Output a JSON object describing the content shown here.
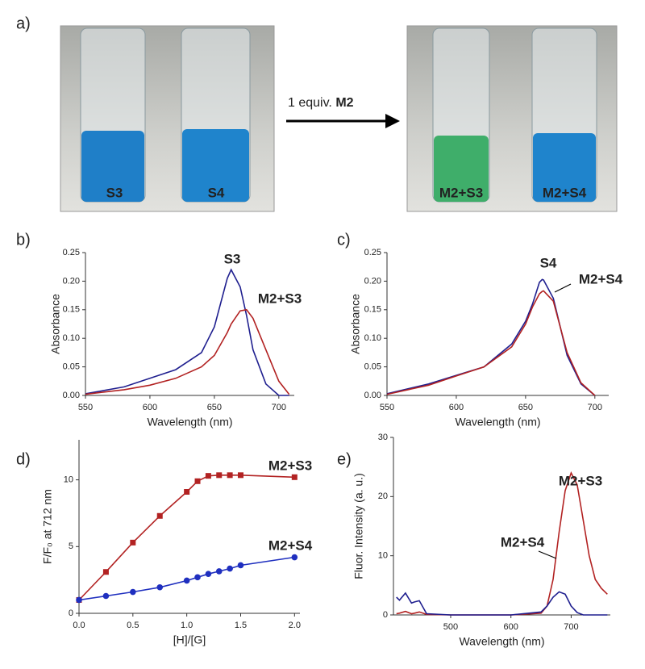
{
  "panel_a": {
    "letter": "a)",
    "left_labels": [
      "S3",
      "S4"
    ],
    "arrow_text": "1 equiv.",
    "arrow_bold": "M2",
    "right_labels": [
      "M2+S3",
      "M2+S4"
    ]
  },
  "chart_data": [
    {
      "type": "line",
      "panel": "b)",
      "xlabel": "Wavelength (nm)",
      "ylabel": "Absorbance",
      "x": [
        550,
        580,
        600,
        620,
        640,
        650,
        660,
        663,
        670,
        675,
        680,
        690,
        700,
        708
      ],
      "xlim": [
        550,
        712
      ],
      "xticks": [
        550,
        600,
        650,
        700
      ],
      "ylim": [
        0,
        0.25
      ],
      "yticks": [
        {
          "value": 0,
          "label": "0.00"
        },
        {
          "value": 0.05,
          "label": "0.05"
        },
        {
          "value": 0.1,
          "label": "0.10"
        },
        {
          "value": 0.15,
          "label": "0.15"
        },
        {
          "value": 0.2,
          "label": "0.20"
        },
        {
          "value": 0.25,
          "label": "0.25"
        }
      ],
      "series": [
        {
          "name": "S3",
          "color": "#1f1f8f",
          "values": [
            0.003,
            0.015,
            0.03,
            0.045,
            0.075,
            0.12,
            0.205,
            0.22,
            0.19,
            0.14,
            0.08,
            0.02,
            0,
            0
          ]
        },
        {
          "name": "M2+S3",
          "color": "#b22222",
          "values": [
            0.002,
            0.01,
            0.018,
            0.03,
            0.05,
            0.07,
            0.11,
            0.125,
            0.148,
            0.15,
            0.135,
            0.08,
            0.025,
            0.002
          ]
        }
      ]
    },
    {
      "type": "line",
      "panel": "c)",
      "xlabel": "Wavelength (nm)",
      "ylabel": "Absorbance",
      "x": [
        550,
        580,
        600,
        620,
        640,
        650,
        655,
        660,
        662,
        663,
        670,
        680,
        690,
        700
      ],
      "xlim": [
        550,
        710
      ],
      "xticks": [
        550,
        600,
        650,
        700
      ],
      "ylim": [
        0,
        0.25
      ],
      "yticks": [
        {
          "value": 0,
          "label": "0.00"
        },
        {
          "value": 0.05,
          "label": "0.05"
        },
        {
          "value": 0.1,
          "label": "0.10"
        },
        {
          "value": 0.15,
          "label": "0.15"
        },
        {
          "value": 0.2,
          "label": "0.20"
        },
        {
          "value": 0.25,
          "label": "0.25"
        }
      ],
      "series": [
        {
          "name": "S4",
          "color": "#1f1f8f",
          "values": [
            0.003,
            0.02,
            0.035,
            0.05,
            0.09,
            0.13,
            0.16,
            0.198,
            0.203,
            0.202,
            0.17,
            0.07,
            0.02,
            0
          ]
        },
        {
          "name": "M2+S4",
          "color": "#b22222",
          "values": [
            0.002,
            0.018,
            0.034,
            0.05,
            0.085,
            0.125,
            0.155,
            0.178,
            0.182,
            0.183,
            0.165,
            0.075,
            0.022,
            0
          ]
        }
      ]
    },
    {
      "type": "line",
      "panel": "d)",
      "xlabel": "[H]/[G]",
      "ylabel": "F/F₀ at 712 nm",
      "markers": true,
      "x": [
        0,
        0.25,
        0.5,
        0.75,
        1.0,
        1.1,
        1.2,
        1.3,
        1.4,
        1.5,
        2.0
      ],
      "xlim": [
        0,
        2.05
      ],
      "xticks": [
        {
          "value": 0,
          "label": "0.0"
        },
        {
          "value": 0.5,
          "label": "0.5"
        },
        {
          "value": 1,
          "label": "1.0"
        },
        {
          "value": 1.5,
          "label": "1.5"
        },
        {
          "value": 2,
          "label": "2.0"
        }
      ],
      "ylim": [
        0,
        13
      ],
      "yticks": [
        0,
        5,
        10
      ],
      "series": [
        {
          "name": "M2+S3",
          "color": "#b22222",
          "marker": "square",
          "values": [
            1,
            3.1,
            5.3,
            7.3,
            9.1,
            9.9,
            10.3,
            10.35,
            10.35,
            10.35,
            10.2
          ]
        },
        {
          "name": "M2+S4",
          "color": "#1f2fbf",
          "marker": "circle",
          "values": [
            1,
            1.3,
            1.6,
            1.95,
            2.45,
            2.7,
            2.95,
            3.15,
            3.35,
            3.6,
            4.2
          ]
        }
      ]
    },
    {
      "type": "line",
      "panel": "e)",
      "xlabel": "Wavelength (nm)",
      "ylabel": "Fluor. Intensity (a. u.)",
      "x": [
        410,
        415,
        425,
        435,
        440,
        448,
        460,
        500,
        600,
        650,
        660,
        670,
        680,
        690,
        700,
        710,
        720,
        730,
        740,
        750,
        760
      ],
      "xlim": [
        405,
        765
      ],
      "xticks": [
        500,
        600,
        700
      ],
      "ylim": [
        0,
        30
      ],
      "yticks": [
        0,
        10,
        20,
        30
      ],
      "series": [
        {
          "name": "M2+S3",
          "color": "#b22222",
          "values": [
            0.2,
            0.3,
            0.6,
            0.2,
            0.3,
            0.5,
            0.1,
            0,
            0,
            0.3,
            1.5,
            6,
            14,
            21,
            24,
            22,
            16,
            10,
            6,
            4.5,
            3.5
          ]
        },
        {
          "name": "M2+S4",
          "color": "#1f1f8f",
          "values": [
            3,
            2.5,
            3.7,
            2,
            2.2,
            2.4,
            0.2,
            0,
            0,
            0.5,
            1.5,
            3,
            3.9,
            3.5,
            1.5,
            0.4,
            0,
            0,
            0,
            0,
            0
          ]
        }
      ]
    }
  ]
}
